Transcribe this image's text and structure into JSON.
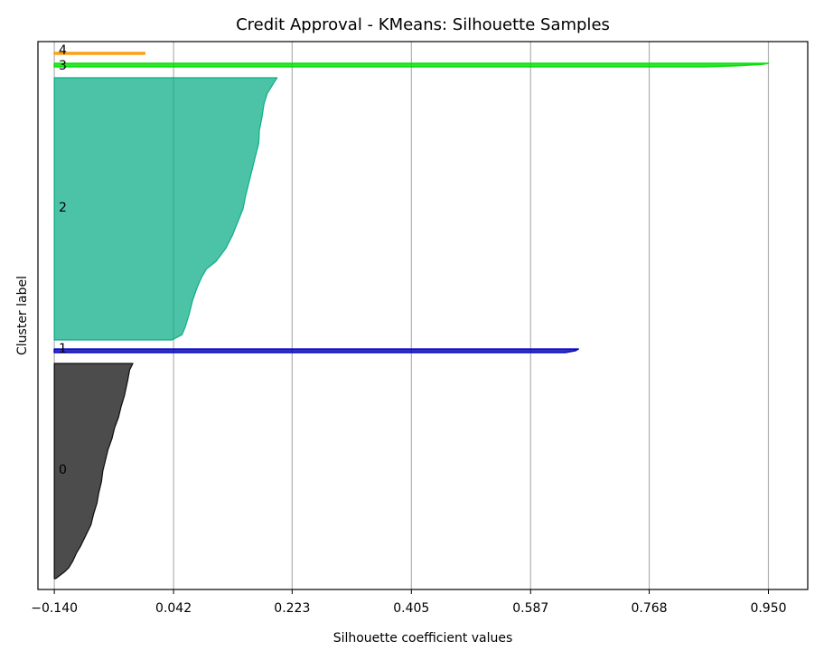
{
  "chart_data": {
    "type": "silhouette",
    "title": "Credit Approval - KMeans: Silhouette Samples",
    "xlabel": "Silhouette coefficient values",
    "ylabel": "Cluster label",
    "xlim": [
      -0.165,
      1.01
    ],
    "xticks": [
      -0.14,
      0.042,
      0.223,
      0.405,
      0.587,
      0.768,
      0.95
    ],
    "xtick_labels": [
      "−0.140",
      "0.042",
      "0.223",
      "0.405",
      "0.587",
      "0.768",
      "0.950"
    ],
    "grid": "x",
    "clusters": [
      {
        "label": "0",
        "color": "#000000",
        "alpha": 0.7,
        "max_value": -0.02,
        "profile": [
          [
            0.0,
            -0.02
          ],
          [
            0.03,
            -0.025
          ],
          [
            0.08,
            -0.028
          ],
          [
            0.15,
            -0.033
          ],
          [
            0.2,
            -0.038
          ],
          [
            0.25,
            -0.042
          ],
          [
            0.3,
            -0.048
          ],
          [
            0.35,
            -0.052
          ],
          [
            0.4,
            -0.058
          ],
          [
            0.45,
            -0.062
          ],
          [
            0.5,
            -0.066
          ],
          [
            0.55,
            -0.068
          ],
          [
            0.6,
            -0.072
          ],
          [
            0.65,
            -0.075
          ],
          [
            0.7,
            -0.08
          ],
          [
            0.75,
            -0.084
          ],
          [
            0.8,
            -0.092
          ],
          [
            0.85,
            -0.1
          ],
          [
            0.88,
            -0.106
          ],
          [
            0.92,
            -0.112
          ],
          [
            0.95,
            -0.118
          ],
          [
            0.97,
            -0.125
          ],
          [
            1.0,
            -0.138
          ]
        ]
      },
      {
        "label": "1",
        "color": "#0000bb",
        "alpha": 0.8,
        "max_value": 0.66,
        "profile": [
          [
            0.0,
            0.66
          ],
          [
            0.5,
            0.655
          ],
          [
            1.0,
            0.64
          ]
        ]
      },
      {
        "label": "2",
        "color": "#00aa80",
        "alpha": 0.7,
        "max_value": 0.2,
        "profile": [
          [
            0.0,
            0.2
          ],
          [
            0.02,
            0.195
          ],
          [
            0.06,
            0.185
          ],
          [
            0.1,
            0.18
          ],
          [
            0.15,
            0.177
          ],
          [
            0.2,
            0.173
          ],
          [
            0.25,
            0.172
          ],
          [
            0.3,
            0.167
          ],
          [
            0.35,
            0.162
          ],
          [
            0.4,
            0.157
          ],
          [
            0.45,
            0.152
          ],
          [
            0.5,
            0.148
          ],
          [
            0.55,
            0.14
          ],
          [
            0.6,
            0.132
          ],
          [
            0.65,
            0.122
          ],
          [
            0.7,
            0.107
          ],
          [
            0.73,
            0.092
          ],
          [
            0.76,
            0.085
          ],
          [
            0.8,
            0.078
          ],
          [
            0.85,
            0.071
          ],
          [
            0.9,
            0.066
          ],
          [
            0.95,
            0.06
          ],
          [
            0.98,
            0.055
          ],
          [
            1.0,
            0.04
          ]
        ]
      },
      {
        "label": "3",
        "color": "#00dd00",
        "alpha": 0.8,
        "max_value": 0.95,
        "profile": [
          [
            0.0,
            0.95
          ],
          [
            0.3,
            0.94
          ],
          [
            0.7,
            0.9
          ],
          [
            1.0,
            0.85
          ]
        ]
      },
      {
        "label": "4",
        "color": "#ff9900",
        "alpha": 0.8,
        "max_value": -0.002,
        "profile": [
          [
            0.0,
            -0.002
          ],
          [
            1.0,
            -0.002
          ]
        ]
      }
    ]
  }
}
